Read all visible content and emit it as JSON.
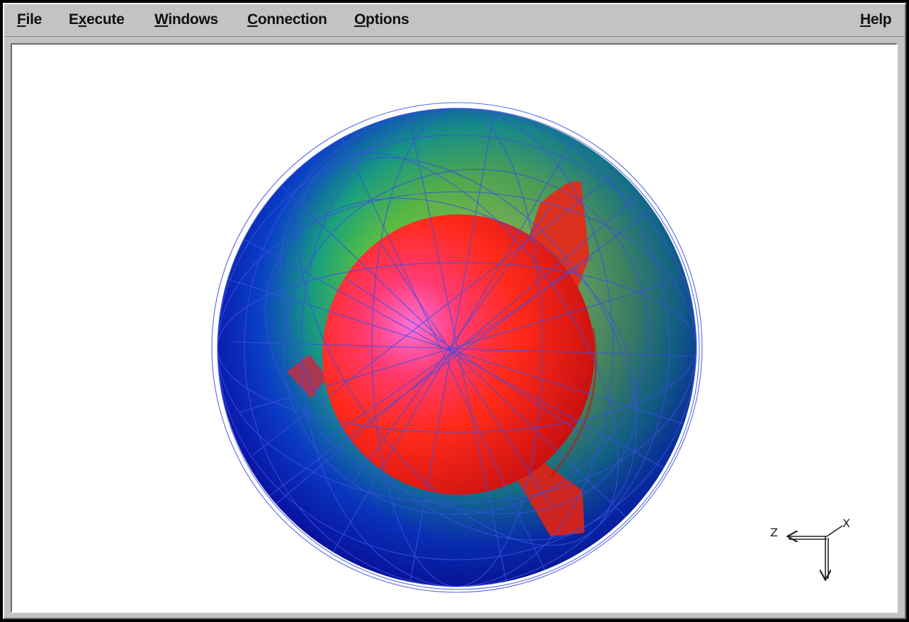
{
  "menubar": {
    "items": [
      {
        "pre": "",
        "mn": "F",
        "post": "ile"
      },
      {
        "pre": "E",
        "mn": "x",
        "post": "ecute"
      },
      {
        "pre": "",
        "mn": "W",
        "post": "indows"
      },
      {
        "pre": "",
        "mn": "C",
        "post": "onnection"
      },
      {
        "pre": "",
        "mn": "O",
        "post": "ptions"
      }
    ],
    "help": {
      "pre": "",
      "mn": "H",
      "post": "elp"
    }
  },
  "viewport": {
    "axis_labels": {
      "left": "Z",
      "diag": "X"
    }
  },
  "colors": {
    "shell_outer": "#0a1fb8",
    "shell_mid": "#1aa86a",
    "shell_inner": "#8fd23a",
    "core": "#ff2a1a",
    "core_highlight": "#ff66cc",
    "wireframe": "#3a4fe6"
  },
  "icons": [
    "axis-triad-icon"
  ]
}
